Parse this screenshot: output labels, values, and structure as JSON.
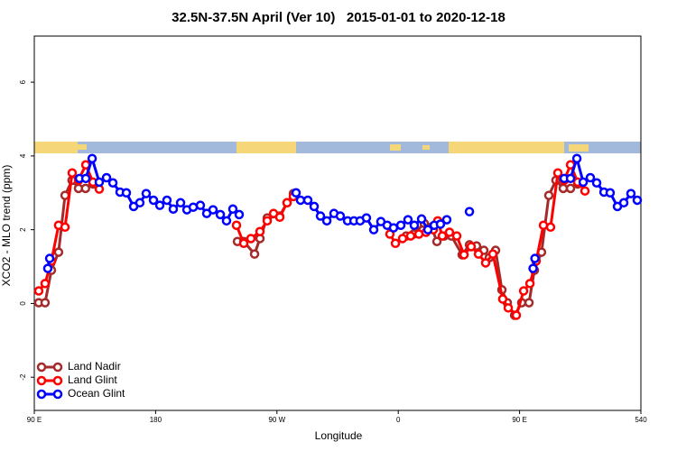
{
  "chart_data": {
    "type": "line",
    "title": "32.5N-37.5N April (Ver 10)   2015-01-01 to 2020-12-18",
    "xlabel": "Longitude",
    "ylabel": "XCO2 - MLO trend (ppm)",
    "xlim": [
      90,
      540
    ],
    "xticks": [
      {
        "value": 90,
        "label": "90 E"
      },
      180,
      {
        "value": 270,
        "label": "90 W"
      },
      {
        "value": 360,
        "label": "0"
      },
      {
        "value": 450,
        "label": "90 E"
      },
      540
    ],
    "ylim": [
      -2.9,
      7.25
    ],
    "yticks": [
      -2,
      0,
      2,
      4,
      6
    ],
    "legend": "bottom-left",
    "series": [
      {
        "name": "Land Nadir",
        "color": "#a52a2a",
        "x": [
          93.3,
          98,
          102.7,
          108,
          112.8,
          118,
          122.8,
          128,
          133.5,
          null,
          240.7,
          245.4,
          253.4,
          257.4,
          262.8,
          272,
          277.5,
          282.2,
          null,
          365.9,
          371.3,
          379.3,
          384.6,
          388.7,
          394,
          399.4,
          407.4,
          412.8,
          418.1,
          423.5,
          427.5,
          432.2,
          436.9,
          440.9,
          446.3,
          451.6,
          457,
          461,
          466.3,
          471.7,
          477,
          482.4,
          487.8,
          493.1
        ],
        "values": [
          0.02,
          0.02,
          0.9,
          1.39,
          2.93,
          3.34,
          3.12,
          3.12,
          3.24,
          null,
          1.68,
          1.68,
          1.34,
          1.76,
          2.32,
          2.37,
          2.73,
          2.98,
          null,
          1.83,
          1.88,
          2.17,
          2.07,
          1.68,
          1.83,
          1.83,
          1.32,
          1.59,
          1.56,
          1.44,
          1.24,
          1.44,
          0.37,
          0.02,
          -0.32,
          0.02,
          0.02,
          0.9,
          1.39,
          2.93,
          3.34,
          3.12,
          3.12,
          3.24
        ]
      },
      {
        "name": "Land Glint",
        "color": "#ff0000",
        "x": [
          93.3,
          98,
          102.7,
          108,
          112.8,
          118.1,
          122.8,
          128.2,
          133.5,
          138.2,
          null,
          240,
          245.4,
          250.7,
          257.4,
          262.8,
          267.5,
          272.1,
          277.5,
          282.2,
          null,
          353.8,
          357.9,
          363.2,
          369.2,
          375.3,
          380.6,
          386,
          389.3,
          392.7,
          398,
          403.4,
          408.8,
          414.1,
          419.5,
          424.8,
          430.2,
          437.5,
          441.6,
          447.6,
          453,
          457.7,
          462.3,
          467.7,
          473,
          478.4,
          483.1,
          487.8,
          493.1,
          498.5
        ],
        "values": [
          0.34,
          0.54,
          1.15,
          2.12,
          2.07,
          3.54,
          3.34,
          3.76,
          3.29,
          3.1,
          null,
          2.12,
          1.63,
          1.76,
          1.95,
          2.24,
          2.44,
          2.34,
          2.73,
          2.9,
          null,
          1.88,
          1.63,
          1.76,
          1.83,
          1.88,
          1.93,
          2.0,
          2.24,
          1.83,
          1.93,
          1.83,
          1.32,
          1.54,
          1.34,
          1.1,
          1.34,
          0.12,
          -0.12,
          -0.32,
          0.34,
          0.54,
          1.15,
          2.12,
          2.07,
          3.54,
          3.34,
          3.76,
          3.29,
          3.05
        ]
      },
      {
        "name": "Ocean Glint",
        "color": "#0000ff",
        "x": [
          100,
          101.4,
          null,
          123.5,
          128.2,
          132.9,
          138.2,
          143.6,
          148.3,
          153.6,
          158.3,
          163.7,
          168.3,
          173,
          178.4,
          183.1,
          188.4,
          193.1,
          198.5,
          203.2,
          207.9,
          213.2,
          217.9,
          222.6,
          228,
          232.6,
          237.3,
          242,
          null,
          284.2,
          287.5,
          292.9,
          297.6,
          302.3,
          307,
          312.3,
          317,
          322.4,
          327.1,
          331.7,
          336.4,
          341.8,
          347.1,
          351.8,
          356.5,
          361.9,
          367.2,
          371.9,
          377.3,
          382,
          386.7,
          391.3,
          396,
          null,
          412.8,
          null,
          460,
          461.4,
          null,
          483.1,
          487.8,
          492.5,
          497.2,
          502.5,
          507.2,
          512.6,
          517.2,
          522.6,
          527.3,
          532.6,
          537.3
        ],
        "values": [
          0.95,
          1.22,
          null,
          3.39,
          3.39,
          3.93,
          3.29,
          3.41,
          3.27,
          3.02,
          3.0,
          2.63,
          2.73,
          2.98,
          2.8,
          2.66,
          2.8,
          2.56,
          2.73,
          2.54,
          2.61,
          2.66,
          2.44,
          2.54,
          2.41,
          2.24,
          2.56,
          2.41,
          null,
          3.0,
          2.8,
          2.8,
          2.63,
          2.37,
          2.24,
          2.44,
          2.37,
          2.24,
          2.24,
          2.24,
          2.32,
          2.0,
          2.22,
          2.12,
          2.05,
          2.12,
          2.27,
          2.12,
          2.29,
          2.0,
          2.12,
          2.15,
          2.27,
          null,
          2.49,
          null,
          0.95,
          1.22,
          null,
          3.39,
          3.39,
          3.93,
          3.29,
          3.41,
          3.27,
          3.02,
          3.0,
          2.63,
          2.73,
          2.98,
          2.8
        ]
      }
    ]
  }
}
